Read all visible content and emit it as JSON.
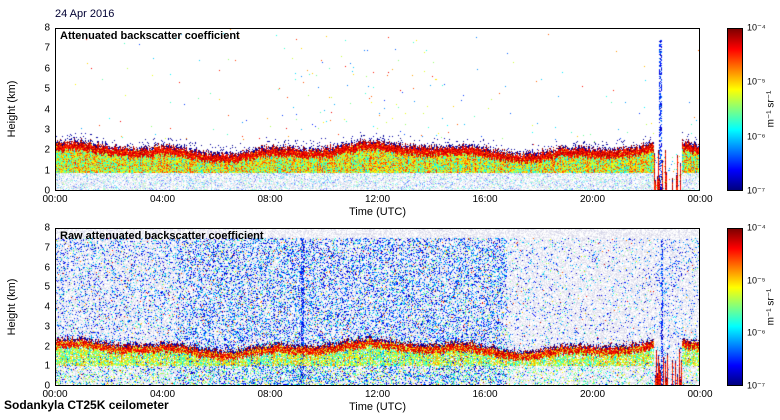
{
  "date_label": "24 Apr 2016",
  "footer_label": "Sodankyla CT25K ceilometer",
  "chart_data": [
    {
      "type": "heatmap",
      "title": "Attenuated backscatter coefficient",
      "xlabel": "Time (UTC)",
      "ylabel": "Height (km)",
      "x_ticks": [
        "00:00",
        "04:00",
        "08:00",
        "12:00",
        "16:00",
        "20:00",
        "00:00"
      ],
      "y_ticks": [
        "0",
        "1",
        "2",
        "3",
        "4",
        "5",
        "6",
        "7",
        "8"
      ],
      "x_range_hours": [
        0,
        24
      ],
      "y_range_km": [
        0,
        8
      ],
      "colormap": "jet",
      "grid": false,
      "colorbar": {
        "label": "m⁻¹ sr⁻¹",
        "ticks": [
          "10⁻⁴",
          "10⁻⁵",
          "10⁻⁶",
          "10⁻⁷"
        ],
        "scale": "log",
        "min": 1e-07,
        "max": 0.0001,
        "position": "right"
      },
      "features": {
        "boundary_layer_top_km": 2.2,
        "strong_backscatter_band_km": [
          1.6,
          2.2
        ],
        "scattered_virga_hours": [
          8,
          14.5
        ],
        "max_feature_height_km": 7.2,
        "disturbance_hours": [
          22.3,
          23.35
        ],
        "vertical_streak_hours": [
          22.55
        ]
      }
    },
    {
      "type": "heatmap",
      "title": "Raw attenuated backscatter coefficient",
      "xlabel": "Time (UTC)",
      "ylabel": "Height (km)",
      "x_ticks": [
        "00:00",
        "04:00",
        "08:00",
        "12:00",
        "16:00",
        "20:00",
        "00:00"
      ],
      "y_ticks": [
        "0",
        "1",
        "2",
        "3",
        "4",
        "5",
        "6",
        "7",
        "8"
      ],
      "x_range_hours": [
        0,
        24
      ],
      "y_range_km": [
        0,
        8
      ],
      "colormap": "jet",
      "grid": false,
      "colorbar": {
        "label": "m⁻¹ sr⁻¹",
        "ticks": [
          "10⁻⁴",
          "10⁻⁵",
          "10⁻⁶",
          "10⁻⁷"
        ],
        "scale": "log",
        "min": 1e-07,
        "max": 0.0001,
        "position": "right"
      },
      "features": {
        "boundary_layer_top_km": 2.15,
        "strong_backscatter_band_km": [
          1.5,
          2.15
        ],
        "background_noise_top_km": 7.55,
        "dense_noise_hours": [
          4.5,
          16.8
        ],
        "disturbance_hours": [
          22.3,
          23.35
        ],
        "vertical_streak_hours": [
          9.17,
          22.6
        ]
      }
    }
  ]
}
